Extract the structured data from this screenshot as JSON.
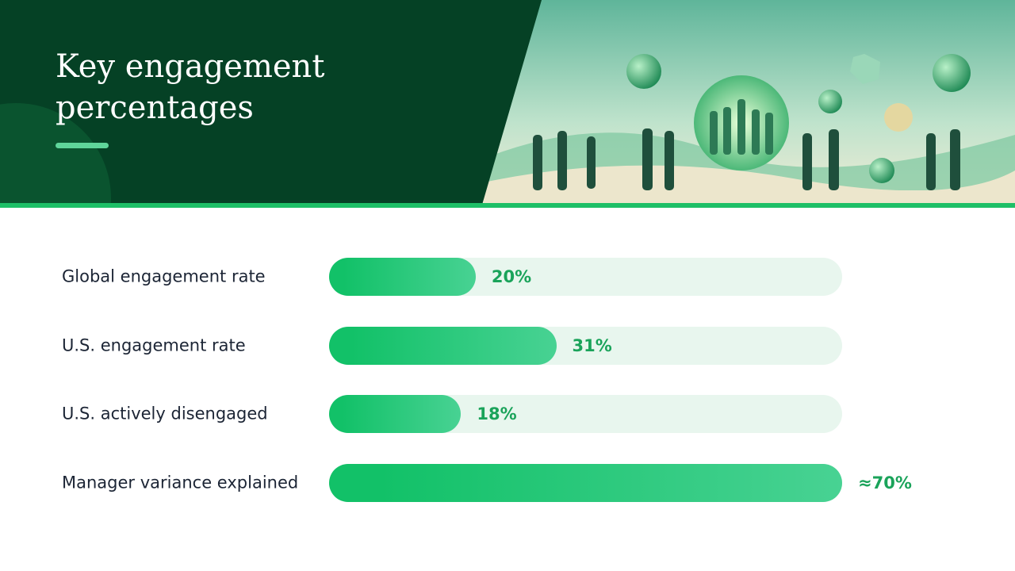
{
  "chart_data": {
    "type": "bar",
    "orientation": "horizontal",
    "title": "Key engagement percentages",
    "categories": [
      "Global engagement rate",
      "U.S. engagement rate",
      "U.S. actively disengaged",
      "Manager variance explained"
    ],
    "values": [
      20,
      31,
      18,
      70
    ],
    "value_labels": [
      "20%",
      "31%",
      "18%",
      "≈70%"
    ],
    "color": "#12c168",
    "xlim": [
      0,
      70
    ]
  }
}
